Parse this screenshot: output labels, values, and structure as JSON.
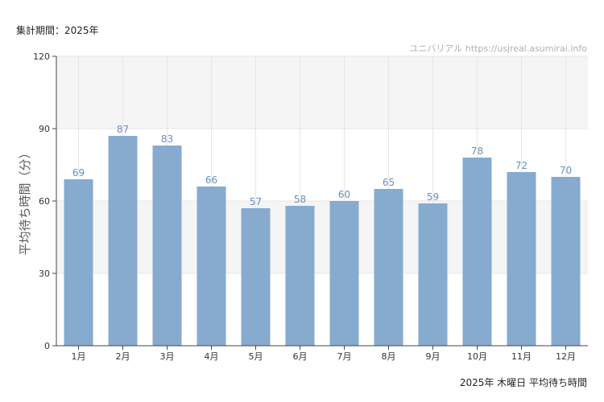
{
  "header": {
    "period": "集計期間：2025年"
  },
  "watermark": "ユニバリアル  https://usjreal.asumirai.info",
  "footer": {
    "caption": "2025年 木曜日 平均待ち時間"
  },
  "colors": {
    "bar": "#87aacf",
    "label": "#6a8fbd",
    "band": "#f5f5f5",
    "grid": "#e6e6e6",
    "axis": "#444444"
  },
  "chart_data": {
    "type": "bar",
    "categories": [
      "1月",
      "2月",
      "3月",
      "4月",
      "5月",
      "6月",
      "7月",
      "8月",
      "9月",
      "10月",
      "11月",
      "12月"
    ],
    "values": [
      69,
      87,
      83,
      66,
      57,
      58,
      60,
      65,
      59,
      78,
      72,
      70
    ],
    "title": "",
    "xlabel": "",
    "ylabel": "平均待ち時間（分）",
    "ylim": [
      0,
      120
    ],
    "yticks": [
      0,
      30,
      60,
      90,
      120
    ],
    "grid": true,
    "data_labels": true
  }
}
